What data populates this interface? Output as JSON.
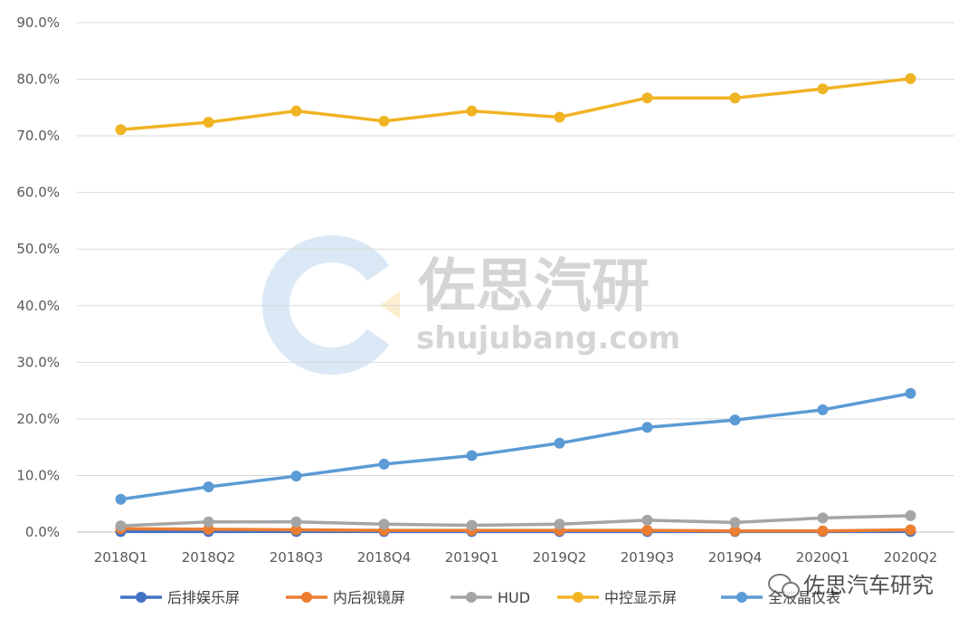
{
  "chart_data": {
    "type": "line",
    "categories": [
      "2018Q1",
      "2018Q2",
      "2018Q3",
      "2018Q4",
      "2019Q1",
      "2019Q2",
      "2019Q3",
      "2019Q4",
      "2020Q1",
      "2020Q2"
    ],
    "ylim": [
      0,
      90
    ],
    "yticks": [
      "0.0%",
      "10.0%",
      "20.0%",
      "30.0%",
      "40.0%",
      "50.0%",
      "60.0%",
      "70.0%",
      "80.0%",
      "90.0%"
    ],
    "grid": true,
    "legend_position": "bottom",
    "series": [
      {
        "name": "后排娱乐屏",
        "color": "#4472C4",
        "values": [
          0.1,
          0.1,
          0.1,
          0.1,
          0.1,
          0.1,
          0.1,
          0.1,
          0.1,
          0.1
        ]
      },
      {
        "name": "内后视镜屏",
        "color": "#ED7D31",
        "values": [
          0.6,
          0.5,
          0.4,
          0.3,
          0.3,
          0.3,
          0.3,
          0.2,
          0.2,
          0.4
        ]
      },
      {
        "name": "HUD",
        "color": "#A5A5A5",
        "values": [
          1.1,
          1.8,
          1.8,
          1.4,
          1.2,
          1.4,
          2.1,
          1.7,
          2.5,
          2.9
        ]
      },
      {
        "name": "中控显示屏",
        "color": "#F0B323",
        "values": [
          71.1,
          72.4,
          74.4,
          72.6,
          74.4,
          73.3,
          76.7,
          76.7,
          78.3,
          80.1
        ]
      },
      {
        "name": "全液晶仪表",
        "color": "#5B9BD5",
        "values": [
          5.8,
          8.0,
          9.9,
          12.0,
          13.5,
          15.7,
          18.5,
          19.8,
          21.6,
          24.5
        ]
      }
    ]
  },
  "watermark": {
    "brand": "佐思汽研",
    "site": "shujubang.com",
    "credit": "佐思汽车研究"
  }
}
